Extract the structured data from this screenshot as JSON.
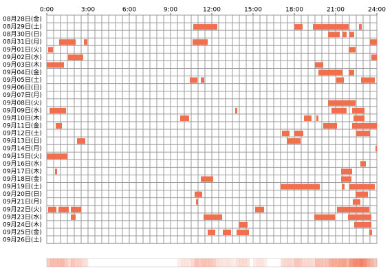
{
  "chart_data": {
    "type": "timeline",
    "color": "#ef6f4e",
    "categories": [
      "08月28日(金)",
      "08月29日(土)",
      "08月30日(日)",
      "08月31日(月)",
      "09月01日(火)",
      "09月02日(水)",
      "09月03日(木)",
      "09月04日(金)",
      "09月05日(土)",
      "09月06日(日)",
      "09月07日(月)",
      "09月08日(火)",
      "09月09日(水)",
      "09月10日(木)",
      "09月11日(金)",
      "09月12日(土)",
      "09月13日(日)",
      "09月14日(月)",
      "09月15日(火)",
      "09月16日(水)",
      "09月17日(木)",
      "09月18日(金)",
      "09月19日(土)",
      "09月20日(日)",
      "09月21日(月)",
      "09月22日(火)",
      "09月23日(水)",
      "09月24日(木)",
      "09月25日(金)",
      "09月26日(土)"
    ],
    "segments": [
      [],
      [
        [
          10.65,
          12.4
        ],
        [
          18.0,
          18.6
        ],
        [
          19.35,
          21.95
        ],
        [
          22.7,
          22.9
        ]
      ],
      [
        [
          20.45,
          21.3
        ],
        [
          21.5,
          21.8
        ],
        [
          22.0,
          22.35
        ]
      ],
      [
        [
          0.9,
          2.1
        ],
        [
          2.7,
          2.95
        ],
        [
          10.6,
          11.7
        ],
        [
          23.5,
          24
        ]
      ],
      [
        [
          0.1,
          0.45
        ],
        [
          21.95,
          22.45
        ]
      ],
      [
        [
          1.55,
          2.65
        ],
        [
          23.6,
          24
        ]
      ],
      [
        [
          0,
          1.25
        ],
        [
          19.5,
          20.1
        ]
      ],
      [
        [
          19.75,
          21.5
        ],
        [
          21.95,
          22.35
        ]
      ],
      [
        [
          10.4,
          10.95
        ],
        [
          11.2,
          11.45
        ],
        [
          21.05,
          21.6
        ],
        [
          22.85,
          23.85
        ]
      ],
      [],
      [],
      [
        [
          20.45,
          22.45
        ]
      ],
      [
        [
          0.2,
          1.4
        ],
        [
          13.7,
          13.85
        ],
        [
          20.7,
          21.8
        ],
        [
          22.2,
          23.1
        ]
      ],
      [
        [
          9.7,
          10.35
        ],
        [
          18.7,
          19.25
        ],
        [
          19.6,
          19.75
        ],
        [
          22.3,
          23.1
        ]
      ],
      [
        [
          0.65,
          1.1
        ],
        [
          20.1,
          21.1
        ],
        [
          22.2,
          24
        ]
      ],
      [
        [
          17.1,
          17.65
        ],
        [
          18.0,
          18.65
        ],
        [
          22.5,
          23.5
        ]
      ],
      [
        [
          2.2,
          2.8
        ],
        [
          17.45,
          18.45
        ]
      ],
      [
        [
          23.9,
          24
        ]
      ],
      [
        [
          0,
          1.5
        ]
      ],
      [
        [
          22.8,
          23.2
        ]
      ],
      [
        [
          0.6,
          0.75
        ],
        [
          21.4,
          22.2
        ]
      ],
      [
        [
          11.2,
          12.1
        ],
        [
          21.4,
          22.15
        ]
      ],
      [
        [
          17.0,
          19.85
        ],
        [
          21.45,
          21.65
        ],
        [
          22.0,
          23.85
        ]
      ],
      [
        [
          10.75,
          11.3
        ],
        [
          22.45,
          23.35
        ]
      ],
      [
        [
          10.85,
          11.0
        ],
        [
          22.25,
          22.8
        ]
      ],
      [
        [
          0.1,
          0.7
        ],
        [
          0.85,
          1.6
        ],
        [
          1.75,
          2.5
        ],
        [
          15.15,
          15.8
        ],
        [
          21.1,
          23.45
        ]
      ],
      [
        [
          1.75,
          2.1
        ],
        [
          11.4,
          12.75
        ],
        [
          19.45,
          20.95
        ],
        [
          21.9,
          23.6
        ]
      ],
      [
        [
          13.95,
          14.6
        ],
        [
          22.35,
          23.6
        ]
      ],
      [
        [
          11.7,
          12.25
        ],
        [
          12.8,
          13.4
        ],
        [
          13.8,
          14.7
        ],
        [
          23.45,
          23.65
        ]
      ],
      []
    ],
    "xlim": [
      0,
      24
    ],
    "xticks": [
      {
        "value": 0,
        "label": "0:00"
      },
      {
        "value": 3,
        "label": "3:00"
      },
      {
        "value": 6,
        "label": "6:00"
      },
      {
        "value": 9,
        "label": "9:00"
      },
      {
        "value": 12,
        "label": "12:00"
      },
      {
        "value": 15,
        "label": "15:00"
      },
      {
        "value": 18,
        "label": "18:00"
      },
      {
        "value": 21,
        "label": "21:00"
      },
      {
        "value": 24,
        "label": "24:00"
      }
    ],
    "grid": true
  }
}
